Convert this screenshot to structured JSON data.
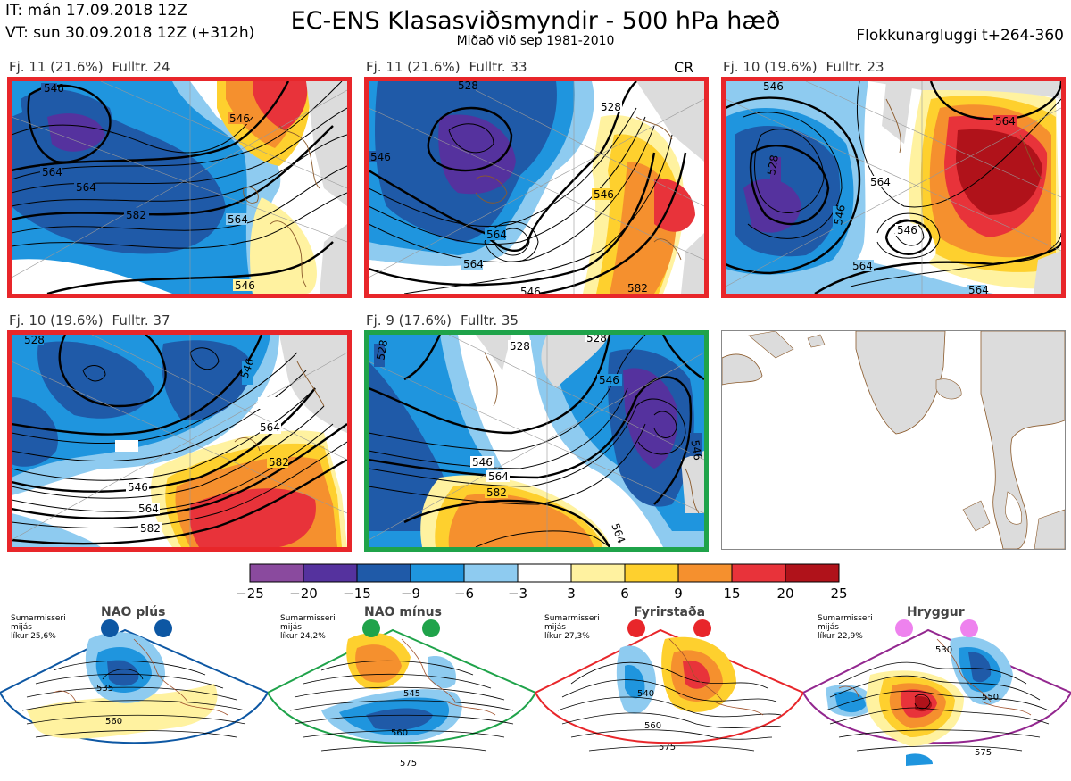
{
  "header": {
    "initial_time": "IT: mán 17.09.2018 12Z",
    "valid_time": "VT: sun 30.09.2018 12Z  (+312h)",
    "title": "EC-ENS Klasasviðsmyndir - 500 hPa hæð",
    "subtitle": "Miðað við sep 1981-2010",
    "window": "Flokkunargluggi t+264-360"
  },
  "panels": [
    {
      "count": "Fj. 11 (21.6%)",
      "rep": "Fulltr. 24",
      "border": "#e8262a",
      "contours": [
        "546",
        "546",
        "564",
        "582",
        "564",
        "564",
        "546"
      ]
    },
    {
      "count": "Fj. 11 (21.6%)",
      "rep": "Fulltr. 33",
      "border": "#e8262a",
      "contours": [
        "528",
        "546",
        "546",
        "528",
        "564",
        "564",
        "546",
        "582"
      ]
    },
    {
      "count": "Fj. 10 (19.6%)",
      "rep": "Fulltr. 23",
      "border": "#e8262a",
      "contours": [
        "546",
        "564",
        "528",
        "546",
        "564",
        "546",
        "564",
        "564"
      ]
    },
    {
      "count": "Fj. 10 (19.6%)",
      "rep": "Fulltr. 37",
      "border": "#e8262a",
      "contours": [
        "528",
        "546",
        "564",
        "582",
        "546",
        "564",
        "582"
      ]
    },
    {
      "count": "Fj. 9 (17.6%)",
      "rep": "Fulltr. 35",
      "border": "#1fa34a",
      "contours": [
        "528",
        "528",
        "546",
        "546",
        "564",
        "582",
        "564",
        "546",
        "528"
      ]
    }
  ],
  "cr_label": "CR",
  "colorbar": {
    "colors": [
      "#8a4a9e",
      "#55329e",
      "#1f5aa8",
      "#1f95de",
      "#8ecbf0",
      "#ffffff",
      "#fff2a0",
      "#fed02e",
      "#f5902e",
      "#e8333a",
      "#b0121a"
    ],
    "ticks": [
      "−25",
      "−20",
      "−15",
      "−9",
      "−6",
      "−3",
      "3",
      "6",
      "9",
      "15",
      "20",
      "25"
    ]
  },
  "regimes": [
    {
      "name": "NAO plús",
      "note1": "Sumarmisseri",
      "note2": "mijás",
      "note3": "líkur 25,6%",
      "color": "#0d57a3",
      "labels": [
        "535",
        "560"
      ]
    },
    {
      "name": "NAO mínus",
      "note1": "Sumarmisseri",
      "note2": "mijás",
      "note3": "líkur 24,2%",
      "color": "#1fa34a",
      "labels": [
        "545",
        "560",
        "575"
      ]
    },
    {
      "name": "Fyrirstaða",
      "note1": "Sumarmisseri",
      "note2": "mijás",
      "note3": "líkur 27,3%",
      "color": "#e8262a",
      "labels": [
        "540",
        "560",
        "575"
      ]
    },
    {
      "name": "Hryggur",
      "note1": "Sumarmisseri",
      "note2": "mijás",
      "note3": "líkur 22,9%",
      "color": "#93278f",
      "dot": "#ee82ee",
      "labels": [
        "530",
        "550",
        "575"
      ]
    }
  ]
}
